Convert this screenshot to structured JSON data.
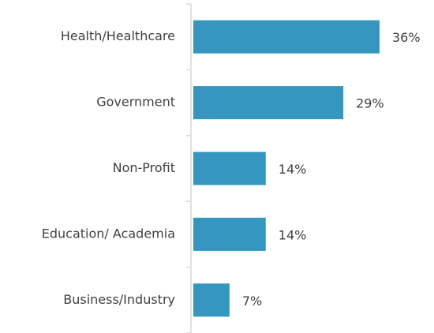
{
  "chart_data": {
    "type": "bar",
    "orientation": "horizontal",
    "categories": [
      "Health/Healthcare",
      "Government",
      "Non-Profit",
      "Education/ Academia",
      "Business/Industry"
    ],
    "values": [
      36,
      29,
      14,
      14,
      7
    ],
    "value_labels": [
      "36%",
      "29%",
      "14%",
      "14%",
      "7%"
    ],
    "color": "#3597bf"
  }
}
